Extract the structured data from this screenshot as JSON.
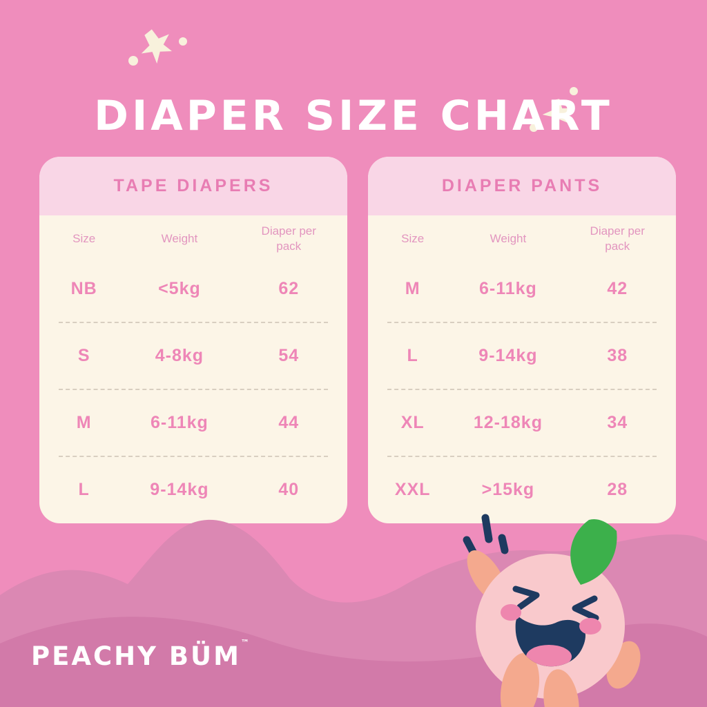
{
  "title": "DIAPER SIZE CHART",
  "brand": {
    "name": "PEACHY BÜM",
    "tm": "™"
  },
  "chart_data": [
    {
      "type": "table",
      "title": "TAPE DIAPERS",
      "columns": [
        "Size",
        "Weight",
        "Diaper per pack"
      ],
      "rows": [
        [
          "NB",
          "<5kg",
          "62"
        ],
        [
          "S",
          "4-8kg",
          "54"
        ],
        [
          "M",
          "6-11kg",
          "44"
        ],
        [
          "L",
          "9-14kg",
          "40"
        ]
      ]
    },
    {
      "type": "table",
      "title": "DIAPER PANTS",
      "columns": [
        "Size",
        "Weight",
        "Diaper per pack"
      ],
      "rows": [
        [
          "M",
          "6-11kg",
          "42"
        ],
        [
          "L",
          "9-14kg",
          "38"
        ],
        [
          "XL",
          "12-18kg",
          "34"
        ],
        [
          "XXL",
          ">15kg",
          "28"
        ]
      ]
    }
  ],
  "colors": {
    "bg": "#EF8DBC",
    "cardHeader": "#F9D6E6",
    "cardBody": "#FCF5E7",
    "cardTitle": "#E87DB3",
    "colHead": "#E295BF",
    "cellText": "#EE86B7",
    "divider": "#D8CEC0",
    "waveBack": "#DB88B3",
    "waveFront": "#D27AA9",
    "starCream": "#F8F1DC",
    "navy": "#1E3A60",
    "mascotBody": "#F9C9CC",
    "mascotLimb": "#F4A98E",
    "leafGreen": "#3CB04B",
    "blush": "#EE86AE",
    "titleText": "#FFFFFF"
  },
  "icons": {
    "left_sparkles": "star-sparkle-cluster",
    "right_sparkles": "star-sparkle-cluster",
    "mascot": "peach-mascot",
    "leaf": "leaf",
    "excitement": "excitement-marks"
  }
}
